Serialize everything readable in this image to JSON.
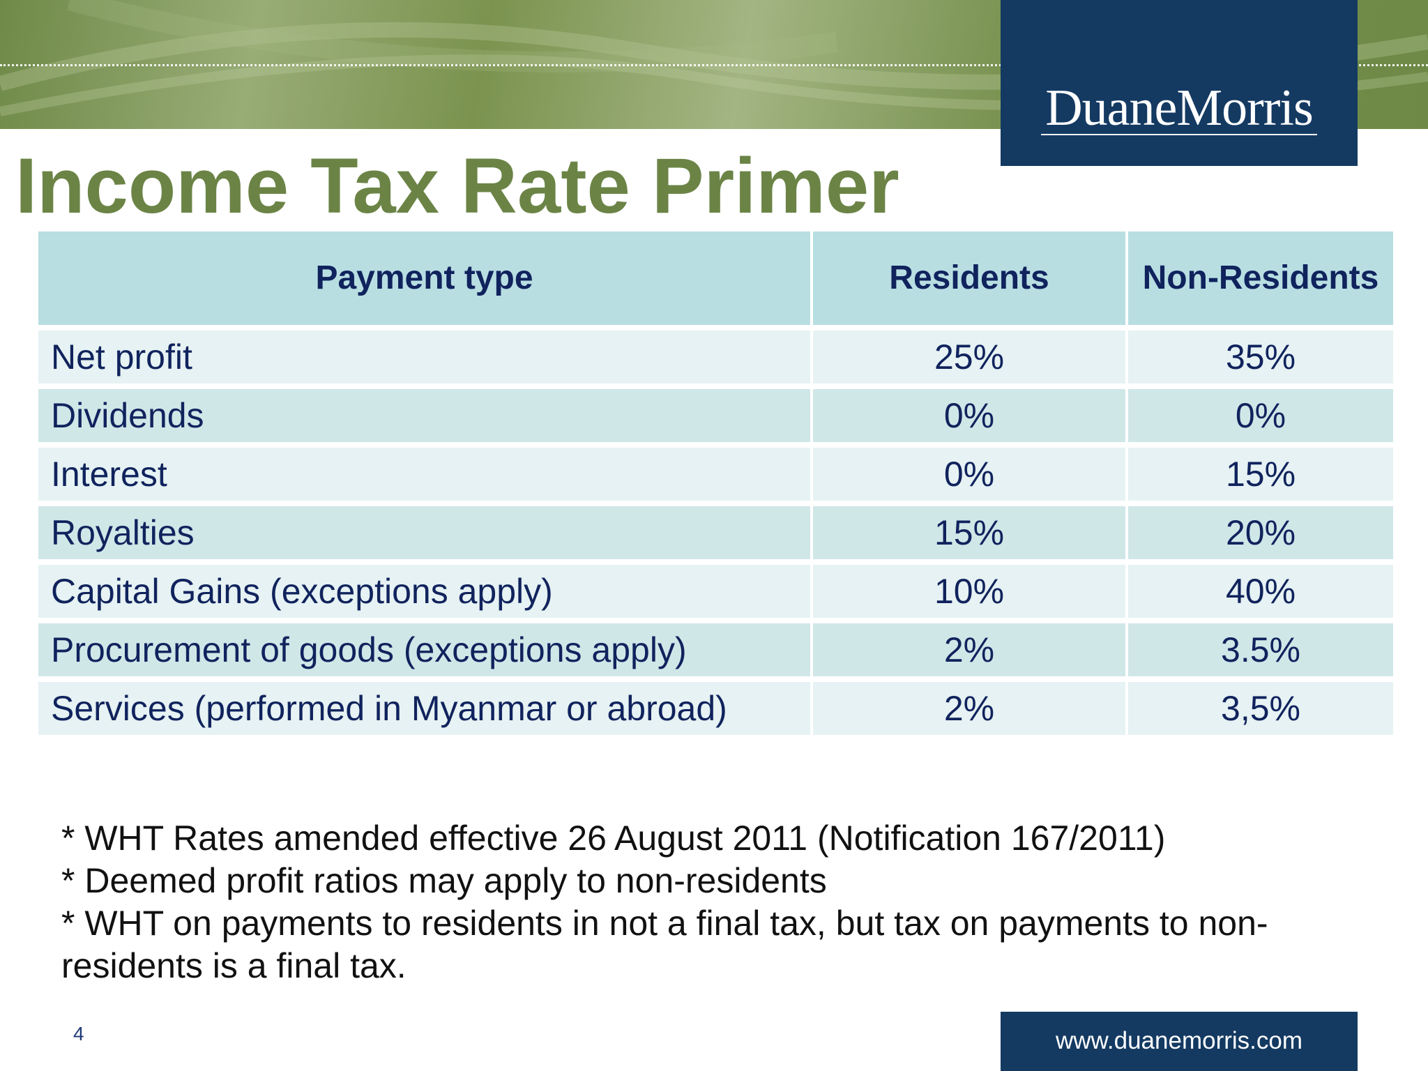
{
  "header": {
    "logo_text": "DuaneMorris",
    "title": "Income Tax Rate Primer"
  },
  "table": {
    "headers": [
      "Payment type",
      "Residents",
      "Non-Residents"
    ],
    "rows": [
      [
        "Net profit",
        "25%",
        "35%"
      ],
      [
        "Dividends",
        "0%",
        "0%"
      ],
      [
        "Interest",
        "0%",
        "15%"
      ],
      [
        "Royalties",
        "15%",
        "20%"
      ],
      [
        "Capital Gains (exceptions apply)",
        "10%",
        "40%"
      ],
      [
        "Procurement of goods (exceptions apply)",
        "2%",
        "3.5%"
      ],
      [
        "Services (performed in Myanmar or abroad)",
        "2%",
        "3,5%"
      ]
    ]
  },
  "notes": [
    "* WHT Rates amended effective 26 August 2011 (Notification 167/2011)",
    "* Deemed profit ratios may apply to non-residents",
    "* WHT on payments to residents in not a final tax, but tax on payments to non-residents is a final tax."
  ],
  "footer": {
    "page_number": "4",
    "url": "www.duanemorris.com"
  },
  "colors": {
    "title_green": "#6b8446",
    "navy": "#143a62",
    "header_cell": "#b8dee2",
    "row_light": "#e6f2f3",
    "row_dark": "#d0e7e8",
    "table_text": "#10235d"
  }
}
